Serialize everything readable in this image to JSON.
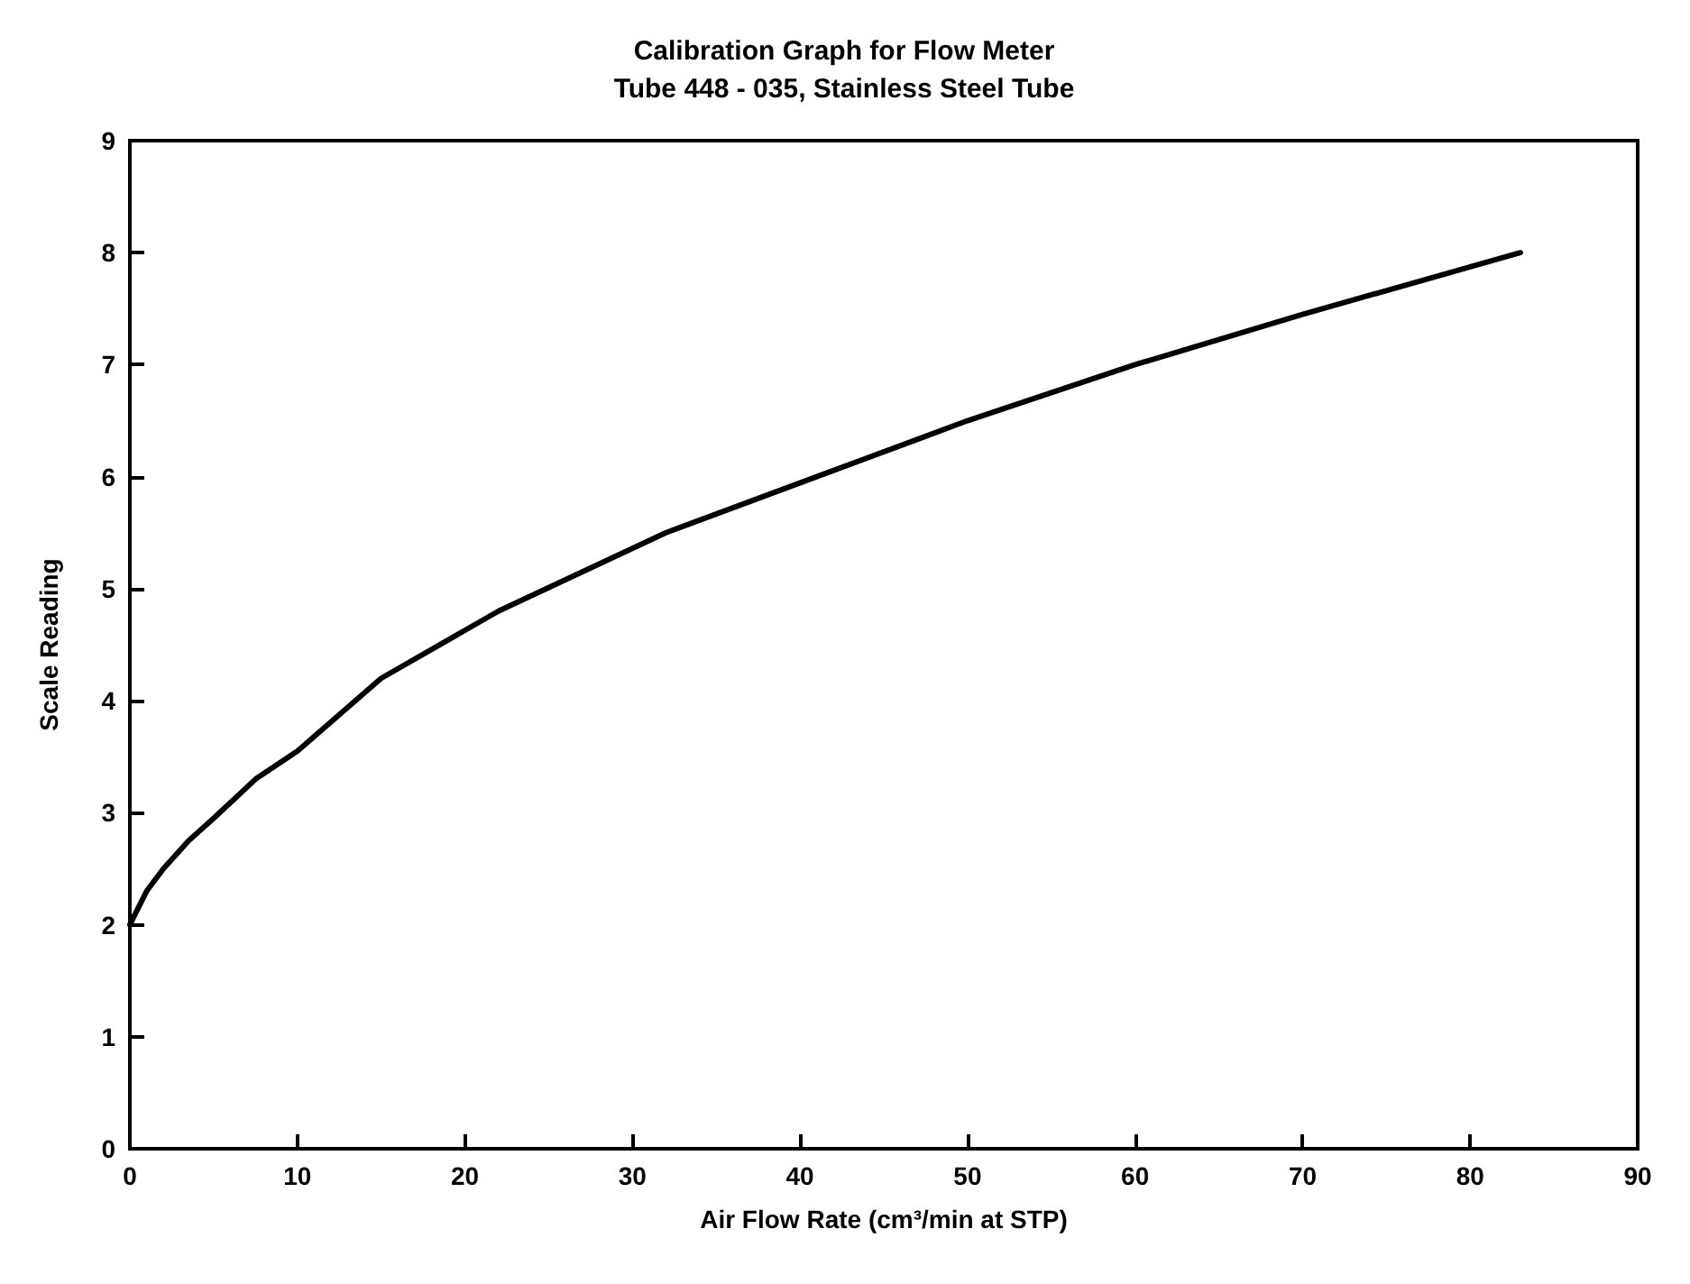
{
  "chart_data": {
    "type": "line",
    "title": "Calibration Graph for Flow Meter",
    "subtitle": "Tube 448 - 035, Stainless Steel Tube",
    "xlabel": "Air Flow Rate (cm³/min at STP)",
    "ylabel": "Scale Reading",
    "x": [
      0,
      1,
      2,
      3.5,
      5,
      7.5,
      10,
      15,
      22,
      27,
      32,
      41,
      50,
      60,
      70,
      83
    ],
    "series": [
      {
        "color": "#000000",
        "values": [
          2,
          2.3,
          2.5,
          2.75,
          2.95,
          3.3,
          3.55,
          4.2,
          4.8,
          5.15,
          5.5,
          6.0,
          6.5,
          7.0,
          7.45,
          8.0
        ]
      }
    ],
    "xlim": [
      0,
      90
    ],
    "xticks": [
      0,
      10,
      20,
      30,
      40,
      50,
      60,
      70,
      80,
      90
    ],
    "ylim": [
      0,
      9
    ],
    "yticks": [
      0,
      1,
      2,
      3,
      4,
      5,
      6,
      7,
      8,
      9
    ],
    "marker": "none",
    "line_style": "solid"
  }
}
